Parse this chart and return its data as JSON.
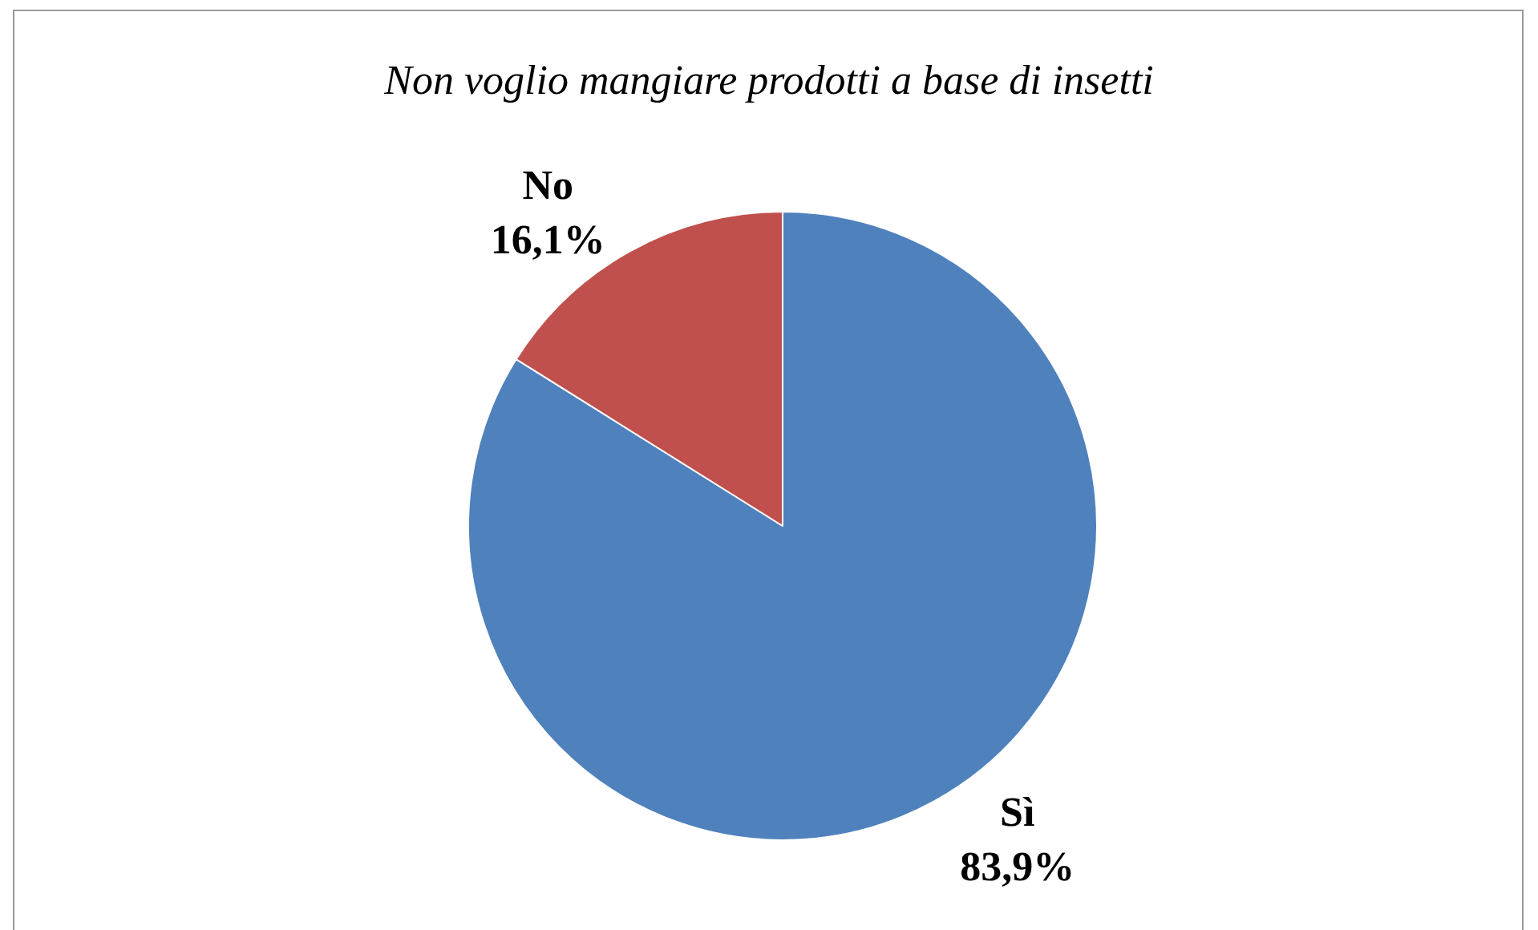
{
  "chart_data": {
    "type": "pie",
    "title": "Non voglio mangiare prodotti a base di insetti",
    "categories": [
      "Sì",
      "No"
    ],
    "values": [
      83.9,
      16.1
    ],
    "value_labels": [
      "83,9%",
      "16,1%"
    ],
    "colors": [
      "#4f81bd",
      "#c0504d"
    ]
  }
}
